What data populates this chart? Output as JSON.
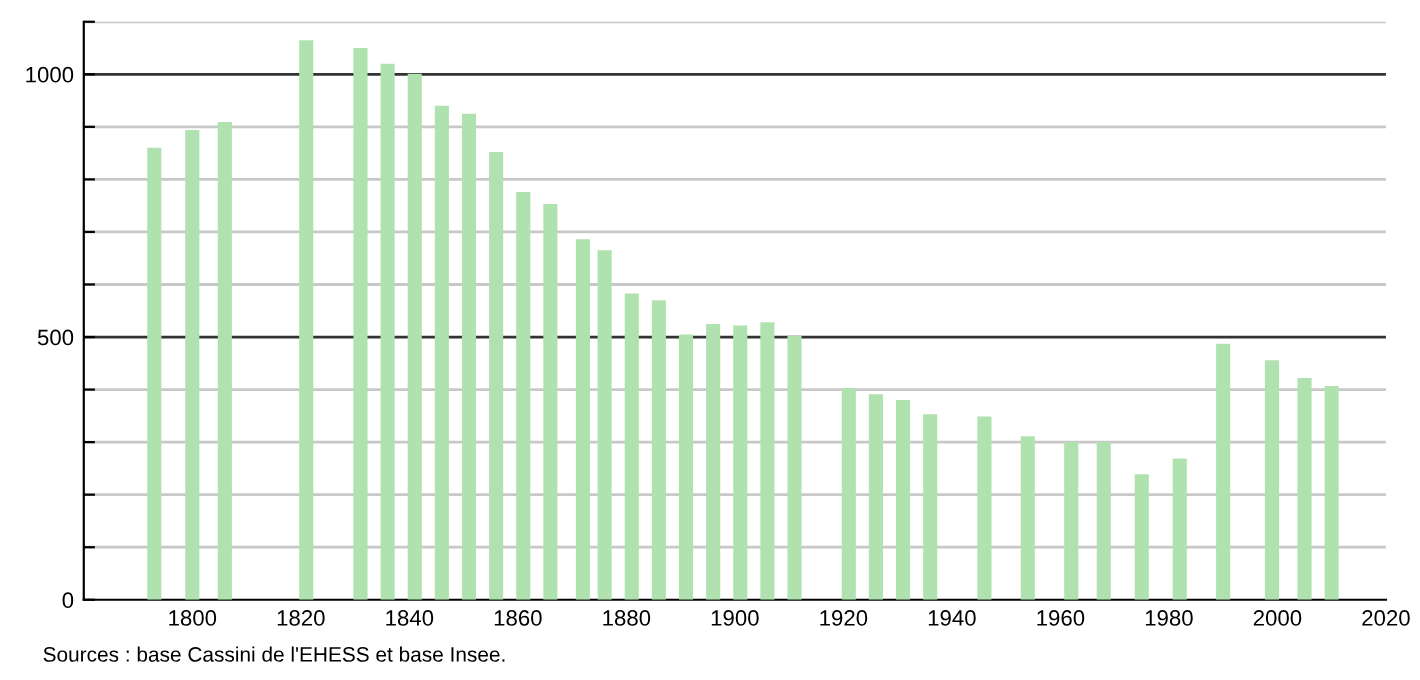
{
  "chart_data": {
    "type": "bar",
    "x": [
      1793,
      1800,
      1806,
      1821,
      1831,
      1836,
      1841,
      1846,
      1851,
      1856,
      1861,
      1866,
      1872,
      1876,
      1881,
      1886,
      1891,
      1896,
      1901,
      1906,
      1911,
      1921,
      1926,
      1931,
      1936,
      1946,
      1954,
      1962,
      1968,
      1975,
      1982,
      1990,
      1999,
      2005,
      2010
    ],
    "values": [
      860,
      894,
      909,
      1065,
      1050,
      1020,
      1001,
      940,
      925,
      852,
      776,
      753,
      686,
      665,
      583,
      570,
      505,
      525,
      522,
      528,
      502,
      403,
      391,
      380,
      353,
      349,
      311,
      300,
      300,
      239,
      269,
      487,
      456,
      422,
      407
    ],
    "color": "#b0e2b0",
    "xlim": [
      1780,
      2020
    ],
    "xticks": [
      1800,
      1820,
      1840,
      1860,
      1880,
      1900,
      1920,
      1940,
      1960,
      1980,
      2000,
      2020
    ],
    "ylim": [
      0,
      1100
    ],
    "yticks": [
      0,
      {
        "value": 100,
        "label": null
      },
      {
        "value": 200,
        "label": null
      },
      {
        "value": 300,
        "label": null
      },
      {
        "value": 400,
        "label": null
      },
      500,
      {
        "value": 600,
        "label": null
      },
      {
        "value": 700,
        "label": null
      },
      {
        "value": 800,
        "label": null
      },
      {
        "value": 900,
        "label": null
      },
      1000,
      {
        "value": 1100,
        "label": null
      }
    ],
    "grid": "y",
    "annotations": [
      "Sources : base Cassini de l'EHESS et base Insee."
    ]
  }
}
